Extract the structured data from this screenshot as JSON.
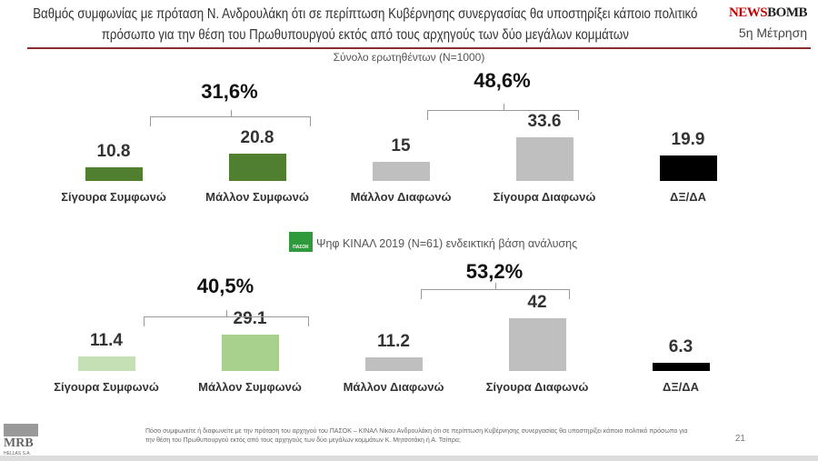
{
  "header": {
    "title": "Βαθμός συμφωνίας με πρόταση Ν. Ανδρουλάκη ότι σε περίπτωση Κυβέρνησης συνεργασίας θα υποστηρίξει κάποιο πολιτικό πρόσωπο για την θέση του Πρωθυπουργού εκτός από τους αρχηγούς των δύο μεγάλων κομμάτων",
    "logo_a": "NEWS",
    "logo_b": "BOMB",
    "measurement": "5η Μέτρηση"
  },
  "chart_data": [
    {
      "type": "bar",
      "title": "Σύνολο ερωτηθέντων (N=1000)",
      "categories": [
        "Σίγουρα Συμφωνώ",
        "Μάλλον Συμφωνώ",
        "Μάλλον Διαφωνώ",
        "Σίγουρα Διαφωνώ",
        "ΔΞ/ΔΑ"
      ],
      "values": [
        10.8,
        20.8,
        15,
        33.6,
        19.9
      ],
      "labels": [
        "10.8",
        "20.8",
        "15",
        "33.6",
        "19.9"
      ],
      "colors": [
        "#4f7f2f",
        "#4f7f2f",
        "#bfbfbf",
        "#bfbfbf",
        "#000000"
      ],
      "groups": [
        {
          "label": "31,6%",
          "members": [
            0,
            1
          ]
        },
        {
          "label": "48,6%",
          "members": [
            2,
            3
          ]
        }
      ]
    },
    {
      "type": "bar",
      "title": "Ψηφ ΚΙΝΑΛ 2019 (N=61) ενδεικτική βάση ανάλυσης",
      "categories": [
        "Σίγουρα Συμφωνώ",
        "Μάλλον Συμφωνώ",
        "Μάλλον Διαφωνώ",
        "Σίγουρα Διαφωνώ",
        "ΔΞ/ΔΑ"
      ],
      "values": [
        11.4,
        29.1,
        11.2,
        42,
        6.3
      ],
      "labels": [
        "11.4",
        "29.1",
        "11.2",
        "42",
        "6.3"
      ],
      "colors": [
        "#c5e0b4",
        "#a9d18e",
        "#bfbfbf",
        "#bfbfbf",
        "#000000"
      ],
      "groups": [
        {
          "label": "40,5%",
          "members": [
            0,
            1
          ]
        },
        {
          "label": "53,2%",
          "members": [
            2,
            3
          ]
        }
      ]
    }
  ],
  "pasok_logo": "ΠΑΣΟΚ",
  "footer": {
    "question": "Πόσο συμφωνείτε ή διαφωνείτε με την πρόταση του αρχηγού του ΠΑΣΟΚ – ΚΙΝΑΛ Νίκου Ανδρουλάκη ότι σε περίπτωση Κυβέρνησης συνεργασίας θα υποστηρίξει κάποιο πολιτικό πρόσωπο για την θέση του Πρωθυπουργού εκτός από τους αρχηγούς των δύο μεγάλων κομμάτων Κ. Μητσοτάκη ή Α. Τσίπρα;",
    "page": "21",
    "mrb": "MRB",
    "mrb_sub": "HELLAS S.A."
  }
}
